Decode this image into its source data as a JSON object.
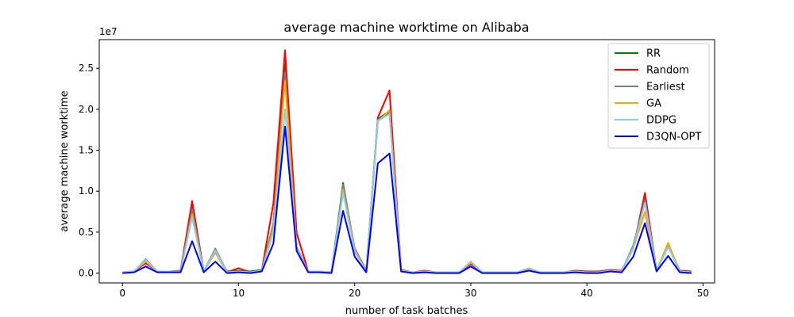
{
  "chart_data": {
    "type": "line",
    "title": "average machine worktime on Alibaba",
    "xlabel": "number of task batches",
    "ylabel": "average machine worktime",
    "y_scale_label": "1e7",
    "xlim": [
      -2,
      51
    ],
    "ylim": [
      -1200000,
      28500000
    ],
    "x_ticks": [
      0,
      10,
      20,
      30,
      40,
      50
    ],
    "x_tick_labels": [
      "0",
      "10",
      "20",
      "30",
      "40",
      "50"
    ],
    "y_ticks": [
      0,
      5000000,
      10000000,
      15000000,
      20000000,
      25000000
    ],
    "y_tick_labels": [
      "0.0",
      "0.5",
      "1.0",
      "1.5",
      "2.0",
      "2.5"
    ],
    "grid": false,
    "legend_position": "top-right",
    "x": [
      0,
      1,
      2,
      3,
      4,
      5,
      6,
      7,
      8,
      9,
      10,
      11,
      12,
      13,
      14,
      15,
      16,
      17,
      18,
      19,
      20,
      21,
      22,
      23,
      24,
      25,
      26,
      27,
      28,
      29,
      30,
      31,
      32,
      33,
      34,
      35,
      36,
      37,
      38,
      39,
      40,
      41,
      42,
      43,
      44,
      45,
      46,
      47,
      48,
      49
    ],
    "series": [
      {
        "name": "RR",
        "color": "#008000",
        "values": [
          100000,
          200000,
          1500000,
          200000,
          200000,
          200000,
          8000000,
          200000,
          2800000,
          200000,
          300000,
          200000,
          400000,
          6000000,
          25500000,
          3000000,
          200000,
          200000,
          100000,
          11000000,
          2800000,
          200000,
          18800000,
          19800000,
          300000,
          100000,
          200000,
          100000,
          100000,
          100000,
          1200000,
          100000,
          100000,
          100000,
          100000,
          500000,
          100000,
          100000,
          100000,
          200000,
          200000,
          100000,
          300000,
          200000,
          3200000,
          9000000,
          300000,
          3500000,
          200000,
          100000
        ]
      },
      {
        "name": "Random",
        "color": "#ff0000",
        "values": [
          100000,
          200000,
          1200000,
          200000,
          200000,
          300000,
          8800000,
          200000,
          2600000,
          100000,
          600000,
          100000,
          300000,
          8500000,
          27200000,
          4900000,
          200000,
          200000,
          100000,
          10500000,
          3000000,
          300000,
          19000000,
          22300000,
          400000,
          100000,
          300000,
          100000,
          100000,
          100000,
          1100000,
          100000,
          100000,
          100000,
          100000,
          400000,
          100000,
          100000,
          100000,
          300000,
          200000,
          200000,
          400000,
          300000,
          3000000,
          9800000,
          300000,
          3500000,
          300000,
          200000
        ]
      },
      {
        "name": "Earliest",
        "color": "#708090",
        "values": [
          100000,
          200000,
          1700000,
          200000,
          200000,
          200000,
          7800000,
          200000,
          3000000,
          100000,
          200000,
          100000,
          300000,
          6000000,
          24500000,
          3200000,
          200000,
          200000,
          100000,
          10800000,
          2900000,
          200000,
          18700000,
          19600000,
          300000,
          100000,
          200000,
          100000,
          100000,
          100000,
          1300000,
          100000,
          100000,
          100000,
          100000,
          500000,
          100000,
          100000,
          100000,
          200000,
          100000,
          100000,
          300000,
          200000,
          3400000,
          8900000,
          300000,
          3400000,
          200000,
          100000
        ]
      },
      {
        "name": "GA",
        "color": "#ffa500",
        "values": [
          100000,
          200000,
          1400000,
          200000,
          200000,
          200000,
          7200000,
          200000,
          2500000,
          100000,
          200000,
          100000,
          300000,
          5500000,
          23500000,
          3000000,
          200000,
          200000,
          100000,
          10200000,
          2800000,
          200000,
          18500000,
          19900000,
          300000,
          100000,
          200000,
          100000,
          100000,
          100000,
          1400000,
          100000,
          100000,
          100000,
          100000,
          600000,
          100000,
          100000,
          100000,
          200000,
          100000,
          100000,
          300000,
          200000,
          3000000,
          7500000,
          300000,
          3700000,
          200000,
          100000
        ]
      },
      {
        "name": "DDPG",
        "color": "#87ceeb",
        "values": [
          100000,
          200000,
          1600000,
          200000,
          200000,
          200000,
          6800000,
          200000,
          2800000,
          100000,
          200000,
          100000,
          300000,
          5000000,
          20000000,
          2900000,
          200000,
          200000,
          100000,
          9800000,
          2600000,
          200000,
          18600000,
          19400000,
          300000,
          100000,
          200000,
          100000,
          100000,
          100000,
          1300000,
          100000,
          100000,
          100000,
          100000,
          500000,
          100000,
          100000,
          100000,
          200000,
          100000,
          100000,
          300000,
          200000,
          3100000,
          8600000,
          300000,
          3200000,
          200000,
          100000
        ]
      },
      {
        "name": "D3QN-OPT",
        "color": "#0000ff",
        "values": [
          0,
          100000,
          800000,
          100000,
          100000,
          100000,
          3900000,
          100000,
          1400000,
          0,
          100000,
          0,
          200000,
          3600000,
          17900000,
          2700000,
          100000,
          100000,
          0,
          7600000,
          2000000,
          100000,
          13400000,
          14600000,
          200000,
          0,
          100000,
          0,
          0,
          0,
          800000,
          0,
          0,
          0,
          0,
          300000,
          0,
          0,
          0,
          100000,
          0,
          0,
          200000,
          100000,
          2000000,
          6100000,
          200000,
          2100000,
          100000,
          0
        ]
      }
    ]
  }
}
